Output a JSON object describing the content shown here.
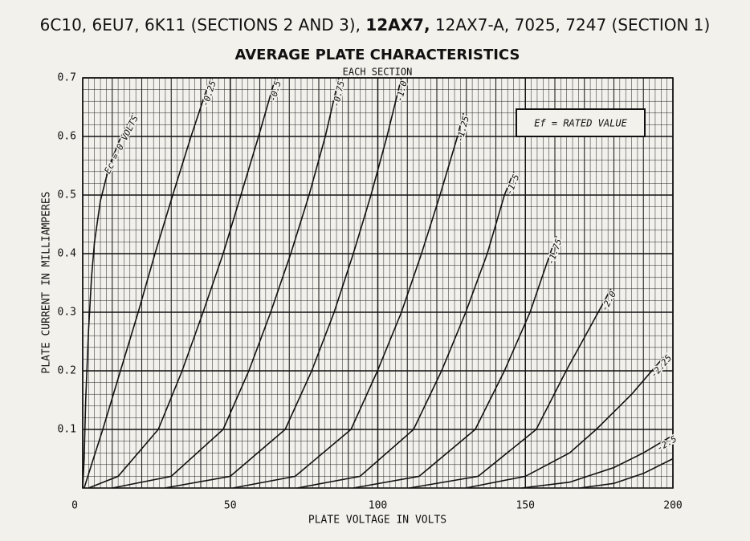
{
  "chart_data": {
    "type": "line",
    "title_parts": [
      "6C10, 6EU7, 6K11 (SECTIONS 2 AND 3), ",
      "12AX7,",
      " 12AX7-A, 7025, 7247 (SECTION 1)"
    ],
    "title": "AVERAGE PLATE CHARACTERISTICS",
    "subtitle": "EACH SECTION",
    "annotation": "Ef = RATED VALUE",
    "x_label": "PLATE VOLTAGE IN VOLTS",
    "y_label": "PLATE CURRENT IN MILLIAMPERES",
    "xlim": [
      0,
      200
    ],
    "xticks": [
      0,
      50,
      100,
      150,
      200
    ],
    "ylim": [
      0,
      0.7
    ],
    "yticks": [
      0.1,
      0.2,
      0.3,
      0.4,
      0.5,
      0.6,
      0.7
    ],
    "grid": true,
    "color": "#111111",
    "series": [
      {
        "name": "Ec = 0 VOLTS",
        "x": [
          0,
          0.5,
          1,
          2,
          3,
          4,
          6,
          9,
          13,
          17
        ],
        "values": [
          0,
          0.05,
          0.15,
          0.27,
          0.36,
          0.42,
          0.49,
          0.55,
          0.6,
          0.64
        ]
      },
      {
        "name": "-0.25",
        "x": [
          0.5,
          3,
          6.8,
          12.8,
          18.8,
          24.5,
          30.5,
          36.7,
          43.3
        ],
        "values": [
          0,
          0.04,
          0.1,
          0.2,
          0.3,
          0.4,
          0.5,
          0.6,
          0.7
        ]
      },
      {
        "name": "-0.5",
        "x": [
          2,
          12,
          25.6,
          33.7,
          40.8,
          47.6,
          53.6,
          59.6,
          65.3
        ],
        "values": [
          0,
          0.02,
          0.1,
          0.2,
          0.3,
          0.4,
          0.5,
          0.6,
          0.7
        ]
      },
      {
        "name": "-0.75",
        "x": [
          10,
          30,
          47.6,
          56.3,
          63.7,
          70.5,
          76.7,
          82.2,
          86.8
        ],
        "values": [
          0,
          0.02,
          0.1,
          0.2,
          0.3,
          0.4,
          0.5,
          0.6,
          0.7
        ]
      },
      {
        "name": "-1.0",
        "x": [
          27.8,
          50,
          68.6,
          77.6,
          85.2,
          91.7,
          97.7,
          103.1,
          108
        ],
        "values": [
          0,
          0.02,
          0.1,
          0.2,
          0.3,
          0.4,
          0.5,
          0.6,
          0.7
        ]
      },
      {
        "name": "-1.25",
        "x": [
          50.9,
          72,
          90.9,
          99.9,
          108,
          114.8,
          121.1,
          127,
          129
        ],
        "values": [
          0,
          0.02,
          0.1,
          0.2,
          0.3,
          0.4,
          0.5,
          0.6,
          0.64
        ]
      },
      {
        "name": "-1.5",
        "x": [
          72.7,
          94,
          112.1,
          121.6,
          129.8,
          137.1,
          142.9,
          146.1
        ],
        "values": [
          0,
          0.02,
          0.1,
          0.2,
          0.3,
          0.4,
          0.5,
          0.54
        ]
      },
      {
        "name": "-1.75",
        "x": [
          91.7,
          114,
          133,
          142.9,
          151.6,
          158.4,
          160.5
        ],
        "values": [
          0,
          0.02,
          0.1,
          0.2,
          0.3,
          0.4,
          0.43
        ]
      },
      {
        "name": "-2.0",
        "x": [
          110.7,
          134,
          153.7,
          163.8,
          174.7,
          179
        ],
        "values": [
          0,
          0.02,
          0.1,
          0.2,
          0.3,
          0.34
        ]
      },
      {
        "name": "-2.25",
        "x": [
          129.8,
          150,
          165,
          174,
          186,
          198
        ],
        "values": [
          0,
          0.02,
          0.06,
          0.1,
          0.16,
          0.23
        ]
      },
      {
        "name": "-2.5",
        "x": [
          148.8,
          165,
          180,
          190,
          200
        ],
        "values": [
          0,
          0.01,
          0.035,
          0.06,
          0.09
        ]
      },
      {
        "name": null,
        "x": [
          168.4,
          180,
          190,
          200
        ],
        "values": [
          0,
          0.008,
          0.025,
          0.05
        ]
      }
    ]
  }
}
